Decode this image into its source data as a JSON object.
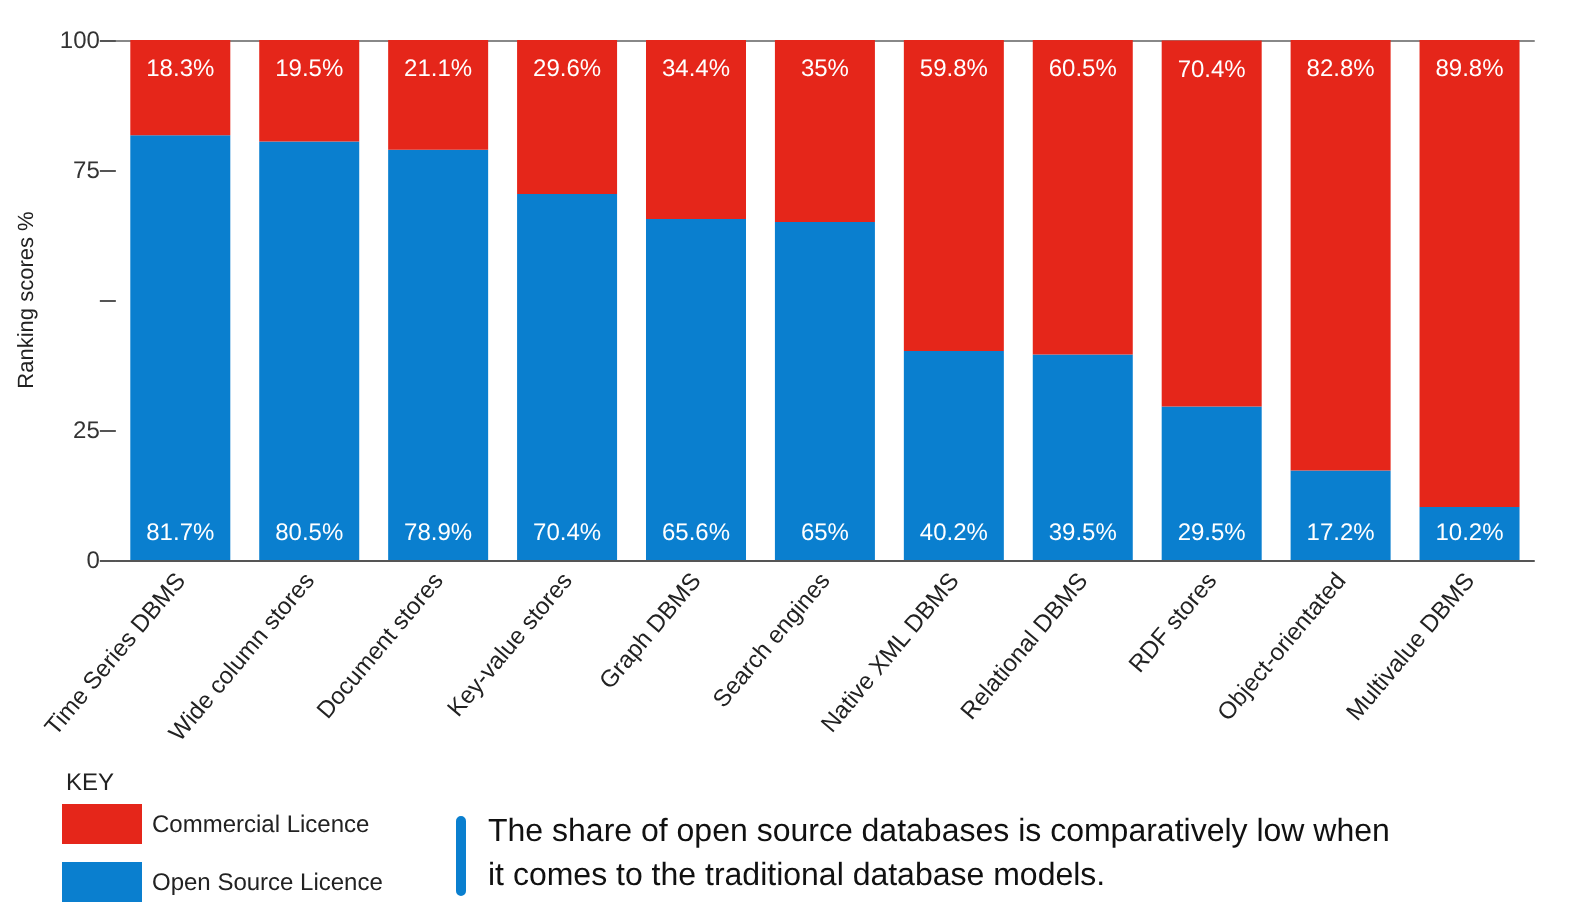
{
  "chart_data": {
    "type": "bar",
    "stacked": true,
    "ylabel": "Ranking scores %",
    "legend_title": "KEY",
    "legend": "bottom left",
    "categories": [
      "Time Series DBMS",
      "Wide column stores",
      "Document stores",
      "Key-value stores",
      "Graph DBMS",
      "Search engines",
      "Native XML DBMS",
      "Relational DBMS",
      "RDF stores",
      "Object-orientated",
      "Multivalue DBMS"
    ],
    "series": [
      {
        "name": "Open Source Licence",
        "color": "#0a7fcf",
        "values": [
          81.7,
          80.5,
          78.9,
          70.4,
          65.6,
          65,
          40.2,
          39.5,
          29.5,
          17.2,
          10.2
        ],
        "value_labels": [
          "81.7%",
          "80.5%",
          "78.9%",
          "70.4%",
          "65.6%",
          "65%",
          "40.2%",
          "39.5%",
          "29.5%",
          "17.2%",
          "10.2%"
        ]
      },
      {
        "name": "Commercial Licence",
        "color": "#e5261a",
        "values": [
          18.3,
          19.5,
          21.1,
          29.6,
          34.4,
          35,
          59.8,
          60.5,
          70.4,
          82.8,
          89.8
        ],
        "value_labels": [
          "18.3%",
          "19.5%",
          "21.1%",
          "29.6%",
          "34.4%",
          "35%",
          "59.8%",
          "60.5%",
          "70.4%",
          "82.8%",
          "89.8%"
        ]
      }
    ],
    "ylim": [
      0,
      100
    ],
    "yticks": [
      0,
      25,
      {
        "value": 50,
        "label": null
      },
      75,
      100
    ],
    "grid": false,
    "annotations": [
      "The share of open source databases is comparatively low when it comes to the traditional database models."
    ]
  }
}
